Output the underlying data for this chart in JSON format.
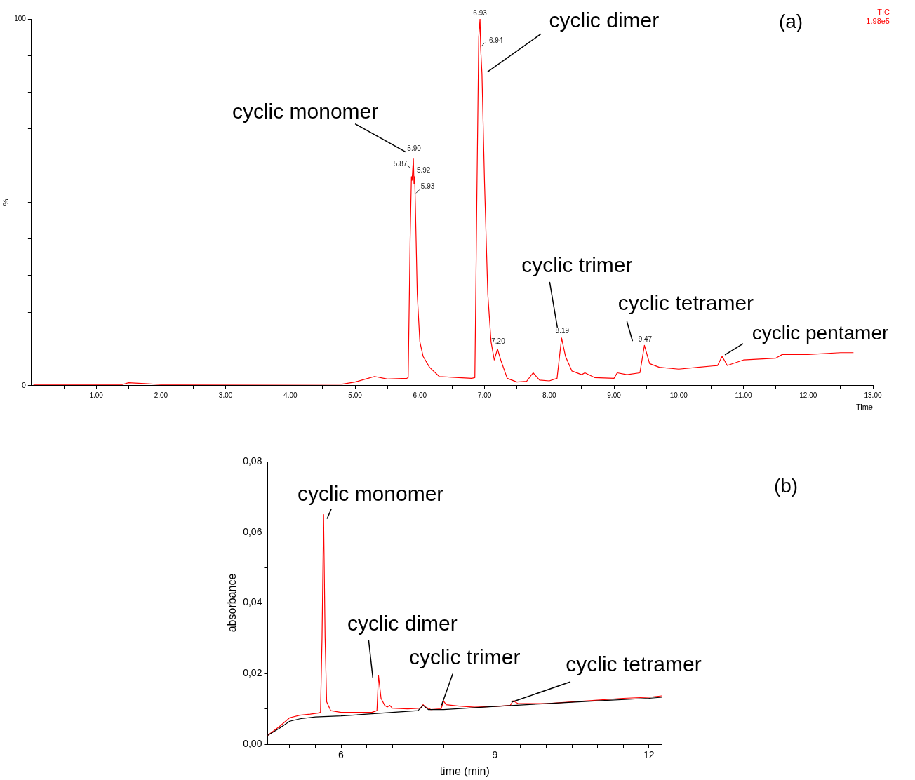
{
  "chart_data": [
    {
      "type": "line",
      "xlabel": "Time",
      "ylabel": "%",
      "marker": "none",
      "xlim": [
        0,
        13
      ],
      "ylim": [
        0,
        100
      ],
      "xticks": [
        {
          "value": 0.5,
          "label": null
        },
        {
          "value": 1,
          "label": "1.00"
        },
        {
          "value": 1.5,
          "label": null
        },
        {
          "value": 2,
          "label": "2.00"
        },
        {
          "value": 2.5,
          "label": null
        },
        {
          "value": 3,
          "label": "3.00"
        },
        {
          "value": 3.5,
          "label": null
        },
        {
          "value": 4,
          "label": "4.00"
        },
        {
          "value": 4.5,
          "label": null
        },
        {
          "value": 5,
          "label": "5.00"
        },
        {
          "value": 5.5,
          "label": null
        },
        {
          "value": 6,
          "label": "6.00"
        },
        {
          "value": 6.5,
          "label": null
        },
        {
          "value": 7,
          "label": "7.00"
        },
        {
          "value": 7.5,
          "label": null
        },
        {
          "value": 8,
          "label": "8.00"
        },
        {
          "value": 8.5,
          "label": null
        },
        {
          "value": 9,
          "label": "9.00"
        },
        {
          "value": 9.5,
          "label": null
        },
        {
          "value": 10,
          "label": "10.00"
        },
        {
          "value": 10.5,
          "label": null
        },
        {
          "value": 11,
          "label": "11.00"
        },
        {
          "value": 11.5,
          "label": null
        },
        {
          "value": 12,
          "label": "12.00"
        },
        {
          "value": 12.5,
          "label": null
        },
        {
          "value": 13,
          "label": "13.00"
        }
      ],
      "yticks": [
        0,
        {
          "value": 10,
          "label": null
        },
        {
          "value": 20,
          "label": null
        },
        {
          "value": 30,
          "label": null
        },
        {
          "value": 40,
          "label": null
        },
        {
          "value": 50,
          "label": null
        },
        {
          "value": 60,
          "label": null
        },
        {
          "value": 70,
          "label": null
        },
        {
          "value": 80,
          "label": null
        },
        {
          "value": 90,
          "label": null
        },
        100
      ],
      "series": [
        {
          "color": "#ff0000",
          "x": [
            0.03,
            1.4,
            1.5,
            1.8,
            2.0,
            4.8,
            5.0,
            5.2,
            5.3,
            5.5,
            5.8,
            5.82,
            5.85,
            5.87,
            5.88,
            5.9,
            5.91,
            5.92,
            5.93,
            5.96,
            6.0,
            6.05,
            6.15,
            6.3,
            6.5,
            6.8,
            6.85,
            6.88,
            6.91,
            6.93,
            6.94,
            6.96,
            7.0,
            7.05,
            7.1,
            7.15,
            7.2,
            7.25,
            7.35,
            7.5,
            7.65,
            7.75,
            7.85,
            8.0,
            8.12,
            8.19,
            8.25,
            8.35,
            8.5,
            8.55,
            8.7,
            9.0,
            9.05,
            9.2,
            9.4,
            9.47,
            9.55,
            9.7,
            10.0,
            10.3,
            10.6,
            10.67,
            10.75,
            11.0,
            11.5,
            11.6,
            12.0,
            12.5,
            12.7
          ],
          "values": [
            0.3,
            0.3,
            0.8,
            0.5,
            0.3,
            0.4,
            1,
            2,
            2.5,
            1.8,
            2,
            2.2,
            40,
            57,
            56,
            62,
            55,
            57,
            50,
            25,
            12,
            8,
            5,
            2.5,
            2.3,
            2,
            2.2,
            50,
            95,
            100,
            92,
            85,
            55,
            25,
            12,
            7,
            10,
            7,
            2,
            1,
            1.2,
            3.5,
            1.5,
            1.3,
            2,
            13,
            8,
            4,
            3,
            3.5,
            2.2,
            2,
            3.5,
            3,
            3.5,
            11,
            6,
            5,
            4.5,
            5,
            5.5,
            8,
            5.5,
            7,
            7.5,
            8.5,
            8.5,
            9,
            9
          ]
        }
      ],
      "annotations": [
        "(a)",
        "TIC",
        "1.98e5",
        {
          "text": "6.93",
          "x": 6.93,
          "y": 100
        },
        {
          "text": "6.94",
          "x": 6.94,
          "y": 92
        },
        {
          "text": "5.90",
          "x": 5.9,
          "y": 62
        },
        {
          "text": "5.87",
          "x": 5.87,
          "y": 57
        },
        {
          "text": "5.92",
          "x": 5.92,
          "y": 57
        },
        {
          "text": "5.93",
          "x": 5.93,
          "y": 50
        },
        {
          "text": "7.20",
          "x": 7.2,
          "y": 10
        },
        {
          "text": "8.19",
          "x": 8.19,
          "y": 13
        },
        {
          "text": "9.47",
          "x": 9.47,
          "y": 11
        },
        {
          "text": "cyclic monomer",
          "x": 5.9,
          "y": 62
        },
        {
          "text": "cyclic dimer",
          "x": 6.96,
          "y": 85
        },
        {
          "text": "cyclic trimer",
          "x": 8.19,
          "y": 13
        },
        {
          "text": "cyclic tetramer",
          "x": 9.47,
          "y": 11
        },
        {
          "text": "cyclic pentamer",
          "x": 10.67,
          "y": 8
        }
      ]
    },
    {
      "type": "line",
      "xlabel": "time (min)",
      "ylabel": "absorbance",
      "marker": "none",
      "xlim": [
        4.57,
        12.25
      ],
      "ylim": [
        0,
        0.08
      ],
      "xticks": [
        {
          "value": 5,
          "label": null
        },
        {
          "value": 5.5,
          "label": null
        },
        6,
        {
          "value": 6.5,
          "label": null
        },
        {
          "value": 7,
          "label": null
        },
        {
          "value": 7.5,
          "label": null
        },
        {
          "value": 8,
          "label": null
        },
        {
          "value": 8.5,
          "label": null
        },
        9,
        {
          "value": 9.5,
          "label": null
        },
        {
          "value": 10,
          "label": null
        },
        {
          "value": 10.5,
          "label": null
        },
        {
          "value": 11,
          "label": null
        },
        {
          "value": 11.5,
          "label": null
        },
        12
      ],
      "yticks": [
        {
          "value": 0,
          "label": "0,00"
        },
        {
          "value": 0.01,
          "label": null
        },
        {
          "value": 0.02,
          "label": "0,02"
        },
        {
          "value": 0.03,
          "label": null
        },
        {
          "value": 0.04,
          "label": "0,04"
        },
        {
          "value": 0.05,
          "label": null
        },
        {
          "value": 0.06,
          "label": "0,06"
        },
        {
          "value": 0.07,
          "label": null
        },
        {
          "value": 0.08,
          "label": "0,08"
        }
      ],
      "series": [
        {
          "color": "#000000",
          "x": [
            4.57,
            4.8,
            5.0,
            5.2,
            5.5,
            6.0,
            6.5,
            7.0,
            7.5,
            7.6,
            7.7,
            8.0,
            9.0,
            10.0,
            11.0,
            12.0,
            12.25
          ],
          "values": [
            0.0025,
            0.0045,
            0.0065,
            0.0072,
            0.0077,
            0.008,
            0.0085,
            0.009,
            0.0095,
            0.011,
            0.0098,
            0.0098,
            0.0107,
            0.0115,
            0.0123,
            0.013,
            0.0133
          ]
        },
        {
          "color": "#ff0000",
          "x": [
            4.57,
            4.8,
            5.0,
            5.2,
            5.4,
            5.55,
            5.6,
            5.63,
            5.66,
            5.69,
            5.72,
            5.8,
            6.0,
            6.2,
            6.4,
            6.6,
            6.7,
            6.73,
            6.78,
            6.85,
            6.9,
            6.95,
            7.0,
            7.3,
            7.55,
            7.6,
            7.65,
            7.75,
            7.95,
            8.0,
            8.05,
            8.3,
            8.6,
            9.0,
            9.3,
            9.35,
            9.45,
            10.0,
            10.5,
            11.0,
            11.5,
            12.0,
            12.25
          ],
          "values": [
            0.0025,
            0.005,
            0.0075,
            0.0082,
            0.0085,
            0.0088,
            0.009,
            0.03,
            0.065,
            0.03,
            0.012,
            0.0095,
            0.009,
            0.009,
            0.009,
            0.009,
            0.0095,
            0.0195,
            0.013,
            0.011,
            0.0105,
            0.011,
            0.0102,
            0.01,
            0.0102,
            0.0112,
            0.0105,
            0.0098,
            0.01,
            0.0122,
            0.0112,
            0.0108,
            0.0105,
            0.0107,
            0.011,
            0.0123,
            0.0115,
            0.0115,
            0.012,
            0.0125,
            0.013,
            0.0133,
            0.0137
          ]
        }
      ],
      "annotations": [
        "(b)",
        {
          "text": "cyclic monomer",
          "x": 5.66,
          "y": 0.065
        },
        {
          "text": "cyclic dimer",
          "x": 6.73,
          "y": 0.0195
        },
        {
          "text": "cyclic trimer",
          "x": 8.0,
          "y": 0.0122
        },
        {
          "text": "cyclic tetramer",
          "x": 9.35,
          "y": 0.0123
        }
      ]
    }
  ]
}
